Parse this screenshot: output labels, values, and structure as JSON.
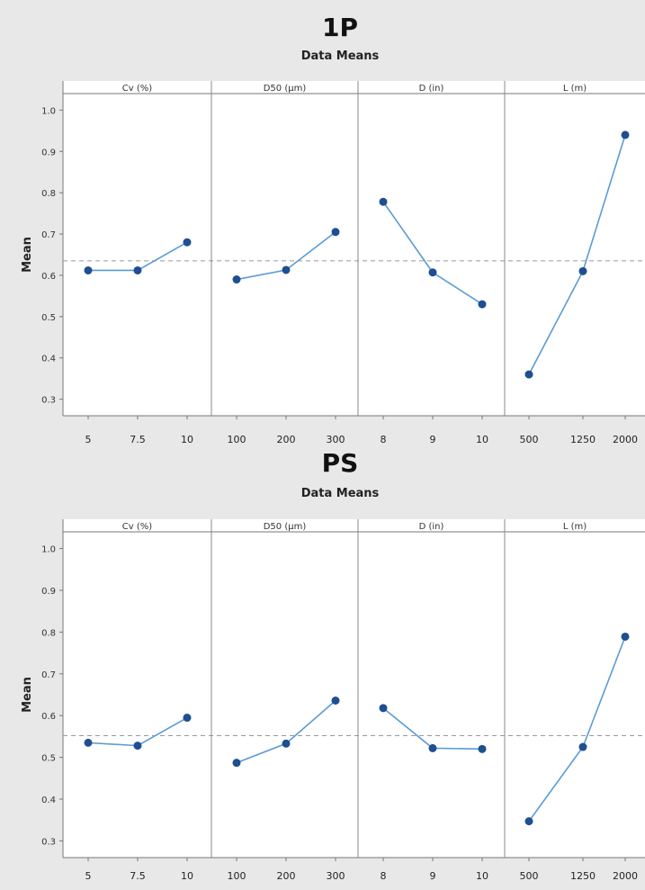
{
  "chart_data": [
    {
      "type": "line",
      "title": "1P",
      "subtitle": "Data Means",
      "ylabel": "Mean",
      "ylim": [
        0.26,
        1.04
      ],
      "yticks": [
        "0.3",
        "0.4",
        "0.5",
        "0.6",
        "0.7",
        "0.8",
        "0.9",
        "1.0"
      ],
      "reference_line": 0.635,
      "grid": false,
      "series_color": "#5b9bd5",
      "point_color": "#1f4e91",
      "panels": [
        {
          "label": "Cv (%)",
          "categories": [
            "5",
            "7.5",
            "10"
          ],
          "values": [
            0.612,
            0.612,
            0.68
          ]
        },
        {
          "label": "D50 (μm)",
          "categories": [
            "100",
            "200",
            "300"
          ],
          "values": [
            0.59,
            0.613,
            0.705
          ]
        },
        {
          "label": "D (in)",
          "categories": [
            "8",
            "9",
            "10"
          ],
          "values": [
            0.778,
            0.607,
            0.53
          ]
        },
        {
          "label": "L (m)",
          "categories": [
            "500",
            "1250",
            "2000"
          ],
          "values": [
            0.36,
            0.61,
            0.94
          ]
        }
      ]
    },
    {
      "type": "line",
      "title": "PS",
      "subtitle": "Data Means",
      "ylabel": "Mean",
      "ylim": [
        0.26,
        1.04
      ],
      "yticks": [
        "0.3",
        "0.4",
        "0.5",
        "0.6",
        "0.7",
        "0.8",
        "0.9",
        "1.0"
      ],
      "reference_line": 0.552,
      "grid": false,
      "series_color": "#5b9bd5",
      "point_color": "#1f4e91",
      "panels": [
        {
          "label": "Cv (%)",
          "categories": [
            "5",
            "7.5",
            "10"
          ],
          "values": [
            0.535,
            0.528,
            0.595
          ]
        },
        {
          "label": "D50 (μm)",
          "categories": [
            "100",
            "200",
            "300"
          ],
          "values": [
            0.487,
            0.533,
            0.636
          ]
        },
        {
          "label": "D (in)",
          "categories": [
            "8",
            "9",
            "10"
          ],
          "values": [
            0.618,
            0.522,
            0.52
          ]
        },
        {
          "label": "L (m)",
          "categories": [
            "500",
            "1250",
            "2000"
          ],
          "values": [
            0.347,
            0.525,
            0.789
          ]
        }
      ]
    }
  ]
}
